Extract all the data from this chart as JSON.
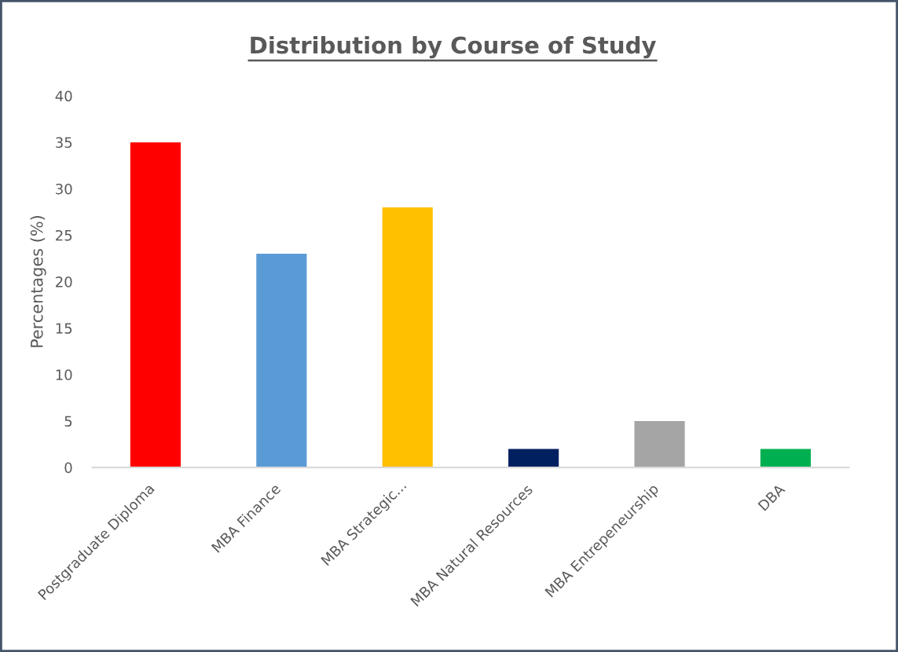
{
  "chart_data": {
    "type": "bar",
    "title": "Distribution by Course of Study",
    "ylabel": "Percentages (%)",
    "categories": [
      "Postgraduate Diploma",
      "MBA Finance",
      "MBA Strategic...",
      "MBA Natural Resources",
      "MBA Entrepeneurship",
      "DBA"
    ],
    "values": [
      35,
      23,
      28,
      2,
      5,
      2
    ],
    "colors": [
      "#ff0000",
      "#5b9bd5",
      "#ffc000",
      "#002060",
      "#a5a5a5",
      "#00b050"
    ],
    "ylim": [
      0,
      40
    ],
    "yticks": [
      0,
      5,
      10,
      15,
      20,
      25,
      30,
      35,
      40
    ],
    "grid": false
  }
}
